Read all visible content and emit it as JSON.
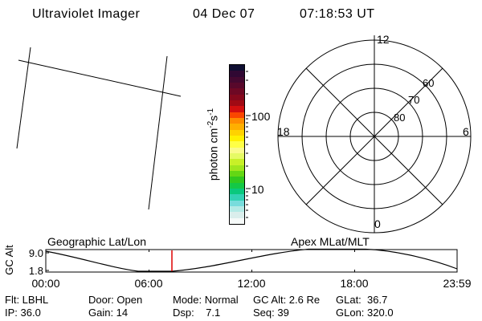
{
  "header": {
    "title": "Ultraviolet Imager",
    "date": "04 Dec 07",
    "time": "07:18:53 UT"
  },
  "geo_panel": {
    "title": "Geographic Lat/Lon"
  },
  "colorbar": {
    "unit_prefix": "photon cm",
    "unit_sup1": "-2",
    "unit_mid": "s",
    "unit_sup2": "-1",
    "tick_100": "100",
    "tick_10": "10",
    "band_colors": [
      "#0f0f32",
      "#300833",
      "#440830",
      "#58082b",
      "#6e0824",
      "#85081c",
      "#a00a14",
      "#d20f0f",
      "#fa4600",
      "#ff8c00",
      "#ffaf00",
      "#ffd200",
      "#fff000",
      "#ffff46",
      "#fafa8c",
      "#e6fa64",
      "#c8f028",
      "#a0e61e",
      "#64d714",
      "#32c81e",
      "#14c846",
      "#0ac87d",
      "#32d2b4",
      "#78dcdc",
      "#b4eae6",
      "#daeeec",
      "#f6faf9"
    ]
  },
  "polar_panel": {
    "title": "Apex MLat/MLT",
    "mlt_top": "12",
    "mlt_left": "18",
    "mlt_right": "6",
    "mlt_bottom": "0",
    "lat_80": "80",
    "lat_70": "70",
    "lat_60": "60"
  },
  "strip_chart": {
    "ylabel": "GC Alt",
    "ytick_top": "9.0",
    "ytick_bottom": "1.8",
    "xticks": [
      "00:00",
      "06:00",
      "12:00",
      "18:00",
      "23:59"
    ],
    "marker_color": "#dd0000",
    "marker_time_fraction": 0.305
  },
  "status": {
    "flt": "Flt: LBHL",
    "ip": "IP: 36.0",
    "door": "Door: Open",
    "gain": "Gain: 14",
    "mode": "Mode: Normal",
    "dsp": "Dsp:    7.1",
    "gc_alt": "GC Alt: 2.6 Re",
    "seq": "Seq: 39",
    "glat": "GLat:  36.7",
    "glon": "GLon: 320.0"
  }
}
